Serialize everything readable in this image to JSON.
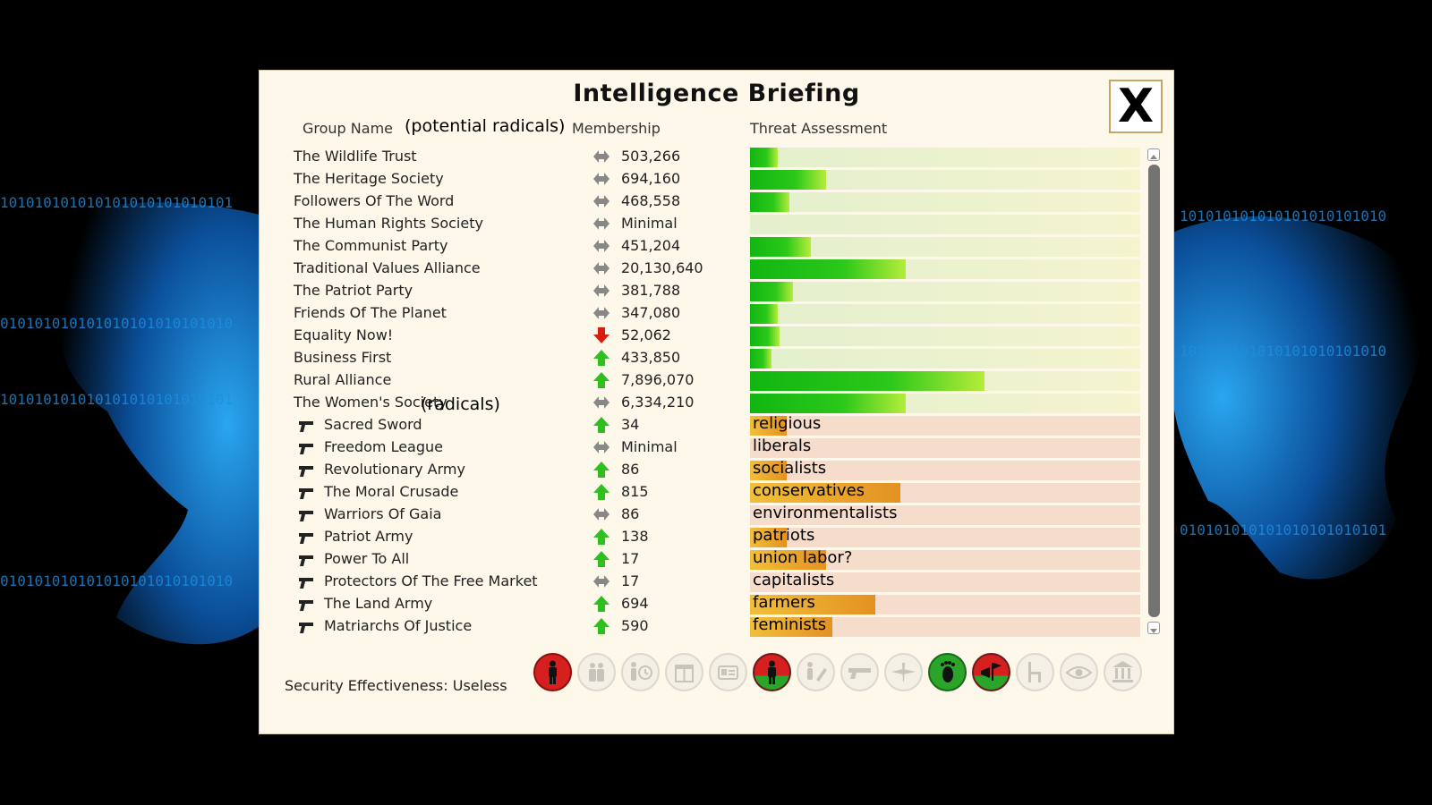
{
  "title": "Intelligence Briefing",
  "close_label": "X",
  "headers": {
    "group_name": "Group Name",
    "membership": "Membership",
    "threat": "Threat Assessment"
  },
  "annotations": {
    "potential_radicals": "(potential  radicals)",
    "radicals": "(radicals)"
  },
  "groups": [
    {
      "name": "The Wildlife Trust",
      "trend": "steady",
      "membership": "503,266",
      "threat": 0.07,
      "label": "",
      "radical": false
    },
    {
      "name": "The Heritage Society",
      "trend": "steady",
      "membership": "694,160",
      "threat": 0.195,
      "label": "",
      "radical": false
    },
    {
      "name": "Followers Of The Word",
      "trend": "steady",
      "membership": "468,558",
      "threat": 0.1,
      "label": "",
      "radical": false
    },
    {
      "name": "The Human Rights Society",
      "trend": "steady",
      "membership": "Minimal",
      "threat": 0,
      "label": "",
      "radical": false
    },
    {
      "name": "The Communist Party",
      "trend": "steady",
      "membership": "451,204",
      "threat": 0.155,
      "label": "",
      "radical": false
    },
    {
      "name": "Traditional Values Alliance",
      "trend": "steady",
      "membership": "20,130,640",
      "threat": 0.4,
      "label": "",
      "radical": false
    },
    {
      "name": "The Patriot Party",
      "trend": "steady",
      "membership": "381,788",
      "threat": 0.11,
      "label": "",
      "radical": false
    },
    {
      "name": "Friends Of The Planet",
      "trend": "steady",
      "membership": "347,080",
      "threat": 0.07,
      "label": "",
      "radical": false
    },
    {
      "name": "Equality Now!",
      "trend": "down",
      "membership": "52,062",
      "threat": 0.075,
      "label": "",
      "radical": false
    },
    {
      "name": "Business First",
      "trend": "up",
      "membership": "433,850",
      "threat": 0.055,
      "label": "",
      "radical": false
    },
    {
      "name": "Rural Alliance",
      "trend": "up",
      "membership": "7,896,070",
      "threat": 0.6,
      "label": "",
      "radical": false
    },
    {
      "name": "The Women's Society",
      "trend": "steady",
      "membership": "6,334,210",
      "threat": 0.4,
      "label": "",
      "radical": false
    },
    {
      "name": "Sacred Sword",
      "trend": "up",
      "membership": "34",
      "threat": 0.095,
      "label": "religious",
      "radical": true
    },
    {
      "name": "Freedom League",
      "trend": "steady",
      "membership": "Minimal",
      "threat": 0,
      "label": "liberals",
      "radical": true
    },
    {
      "name": "Revolutionary Army",
      "trend": "up",
      "membership": "86",
      "threat": 0.095,
      "label": "socialists",
      "radical": true
    },
    {
      "name": "The Moral Crusade",
      "trend": "up",
      "membership": "815",
      "threat": 0.385,
      "label": "conservatives",
      "radical": true
    },
    {
      "name": "Warriors Of Gaia",
      "trend": "steady",
      "membership": "86",
      "threat": 0,
      "label": "environmentalists",
      "radical": true
    },
    {
      "name": "Patriot Army",
      "trend": "up",
      "membership": "138",
      "threat": 0.095,
      "label": "patriots",
      "radical": true
    },
    {
      "name": "Power To All",
      "trend": "up",
      "membership": "17",
      "threat": 0.195,
      "label": "union labor?",
      "radical": true
    },
    {
      "name": "Protectors Of The Free Market",
      "trend": "steady",
      "membership": "17",
      "threat": 0,
      "label": "capitalists",
      "radical": true
    },
    {
      "name": "The Land Army",
      "trend": "up",
      "membership": "694",
      "threat": 0.32,
      "label": "farmers",
      "radical": true
    },
    {
      "name": "Matriarchs Of Justice",
      "trend": "up",
      "membership": "590",
      "threat": 0.21,
      "label": "feminists",
      "radical": true
    }
  ],
  "security": "Security Effectiveness: Useless",
  "policies": [
    {
      "icon": "soldier-icon",
      "state": "active-red"
    },
    {
      "icon": "guards-icon",
      "state": "inactive"
    },
    {
      "icon": "police-clock-icon",
      "state": "inactive"
    },
    {
      "icon": "gift-icon",
      "state": "inactive"
    },
    {
      "icon": "id-card-icon",
      "state": "inactive"
    },
    {
      "icon": "soldier-half-icon",
      "state": "active-red-green"
    },
    {
      "icon": "phone-tap-icon",
      "state": "inactive"
    },
    {
      "icon": "gun-icon",
      "state": "inactive"
    },
    {
      "icon": "drone-icon",
      "state": "inactive"
    },
    {
      "icon": "foot-icon",
      "state": "active-green"
    },
    {
      "icon": "megaphone-flag-icon",
      "state": "active-red-green"
    },
    {
      "icon": "chair-icon",
      "state": "inactive"
    },
    {
      "icon": "eye-icon",
      "state": "inactive"
    },
    {
      "icon": "courthouse-icon",
      "state": "inactive"
    }
  ],
  "colors": {
    "panel": "#fdf8e9",
    "threat_green": "#1ab81a",
    "threat_orange": "#e8a02a",
    "trend_up": "#2fbf1f",
    "trend_down": "#d91c0c",
    "trend_steady": "#888888",
    "policy_red": "#d61f1f",
    "policy_green": "#2aa52a"
  }
}
